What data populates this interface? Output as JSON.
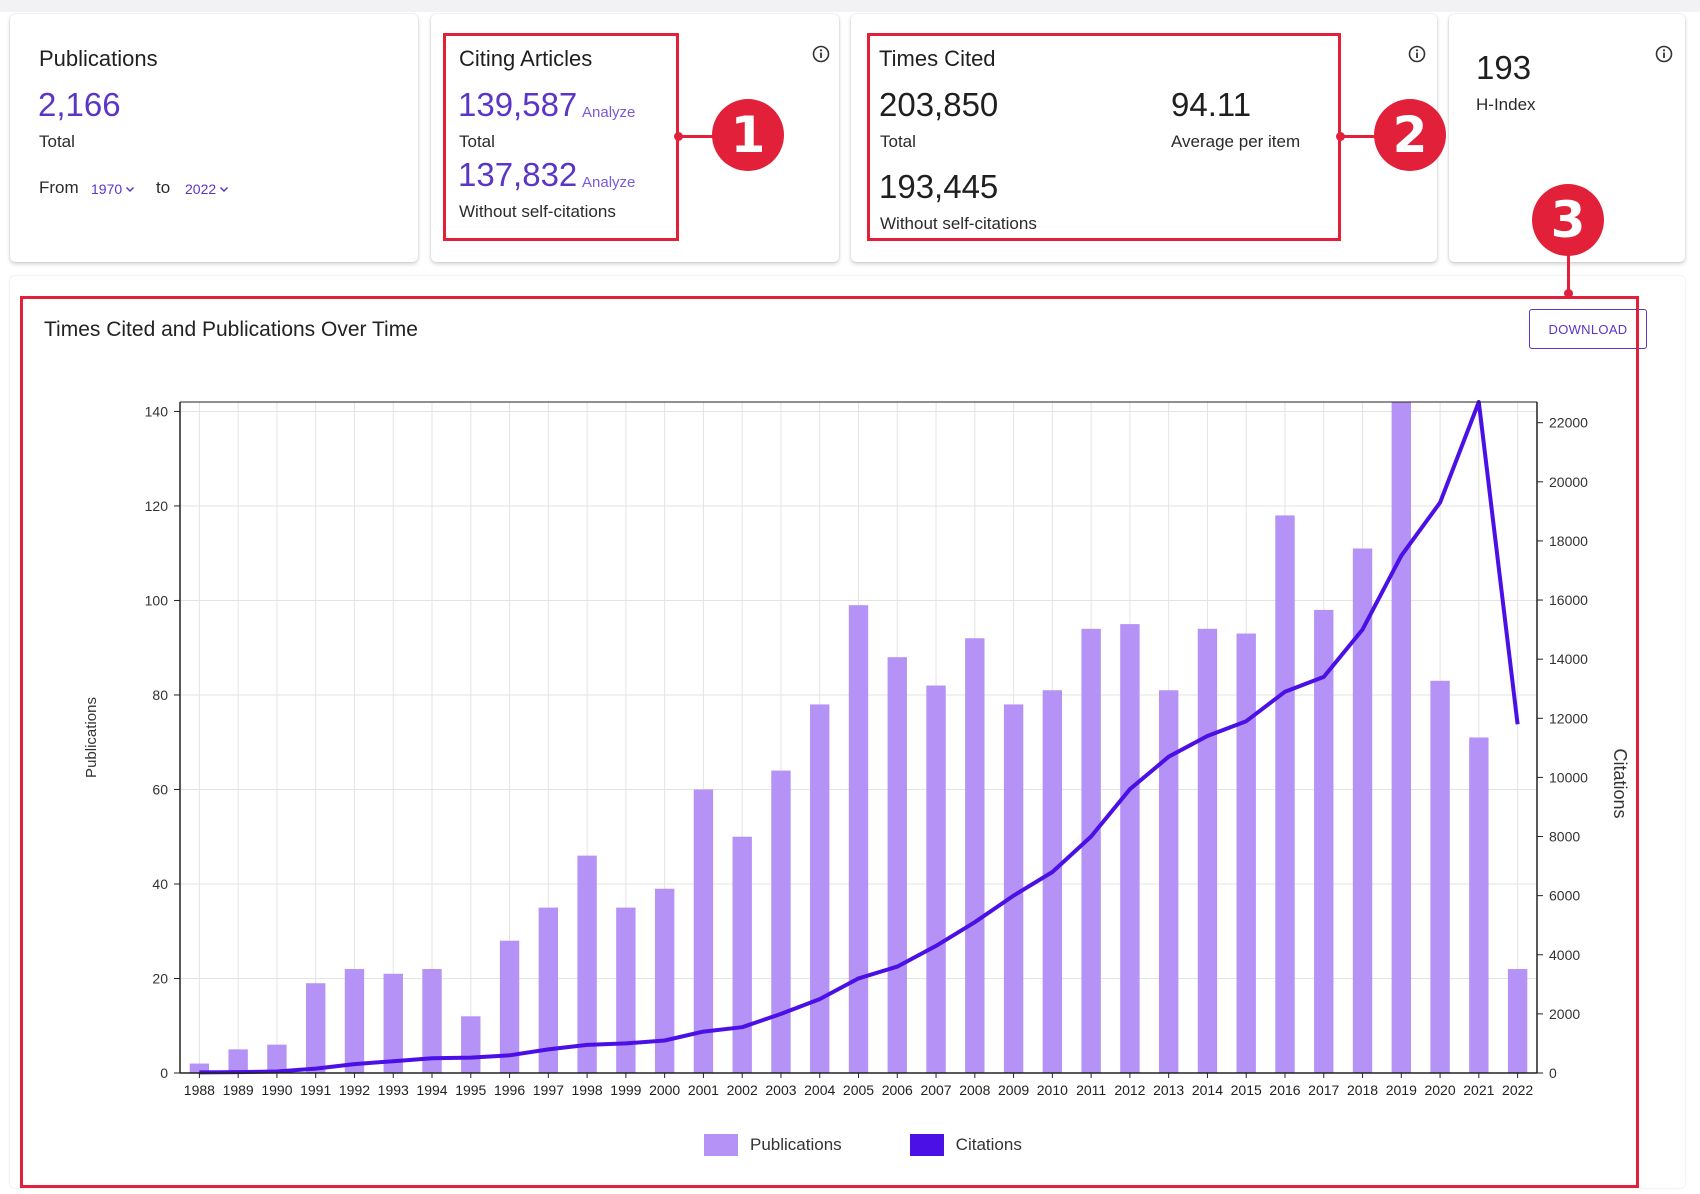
{
  "colors": {
    "accent": "#5b35c6",
    "annotation_red": "#e2203a",
    "bar": "#b592f6",
    "line": "#4b10e6"
  },
  "cards": {
    "publications": {
      "label": "Publications",
      "value": "2,166",
      "sub": "Total",
      "from_label": "From",
      "from_year": "1970",
      "to_label": "to",
      "to_year": "2022"
    },
    "citing": {
      "label": "Citing Articles",
      "total_value": "139,587",
      "total_analyze": "Analyze",
      "total_sub": "Total",
      "noself_value": "137,832",
      "noself_analyze": "Analyze",
      "noself_sub": "Without self-citations",
      "icon": "info-icon"
    },
    "times_cited": {
      "label": "Times Cited",
      "total_value": "203,850",
      "total_sub": "Total",
      "avg_value": "94.11",
      "avg_sub": "Average per item",
      "noself_value": "193,445",
      "noself_sub": "Without self-citations",
      "icon": "info-icon"
    },
    "hindex": {
      "value": "193",
      "label": "H-Index",
      "icon": "info-icon"
    }
  },
  "callouts": [
    "1",
    "2",
    "3"
  ],
  "chart_panel": {
    "title": "Times Cited and Publications Over Time",
    "download_label": "DOWNLOAD"
  },
  "chart_data": {
    "type": "bar",
    "title": "Times Cited and Publications Over Time",
    "xlabel": "",
    "ylabel": "Publications",
    "y2label": "Citations",
    "ylim": [
      0,
      142
    ],
    "y2lim": [
      0,
      22700
    ],
    "yticks": [
      0,
      20,
      40,
      60,
      80,
      100,
      120,
      140
    ],
    "y2ticks": [
      0,
      2000,
      4000,
      6000,
      8000,
      10000,
      12000,
      14000,
      16000,
      18000,
      20000,
      22000
    ],
    "categories": [
      "1988",
      "1989",
      "1990",
      "1991",
      "1992",
      "1993",
      "1994",
      "1995",
      "1996",
      "1997",
      "1998",
      "1999",
      "2000",
      "2001",
      "2002",
      "2003",
      "2004",
      "2005",
      "2006",
      "2007",
      "2008",
      "2009",
      "2010",
      "2011",
      "2012",
      "2013",
      "2014",
      "2015",
      "2016",
      "2017",
      "2018",
      "2019",
      "2020",
      "2021",
      "2022"
    ],
    "grid": true,
    "legend_position": "bottom-center",
    "series": [
      {
        "name": "Publications",
        "type": "bar",
        "axis": "left",
        "color": "#b592f6",
        "values": [
          2,
          5,
          6,
          19,
          22,
          21,
          22,
          12,
          28,
          35,
          46,
          35,
          39,
          60,
          50,
          64,
          78,
          99,
          88,
          82,
          92,
          78,
          81,
          94,
          95,
          81,
          94,
          93,
          118,
          98,
          111,
          142,
          83,
          71,
          22
        ]
      },
      {
        "name": "Citations",
        "type": "line",
        "axis": "right",
        "color": "#4b10e6",
        "values": [
          20,
          30,
          50,
          150,
          300,
          400,
          500,
          520,
          600,
          800,
          950,
          1000,
          1100,
          1400,
          1550,
          2000,
          2500,
          3200,
          3600,
          4300,
          5100,
          6000,
          6800,
          8000,
          9600,
          10700,
          11400,
          11900,
          12900,
          13400,
          15000,
          17500,
          19300,
          22700,
          11800
        ]
      }
    ]
  }
}
